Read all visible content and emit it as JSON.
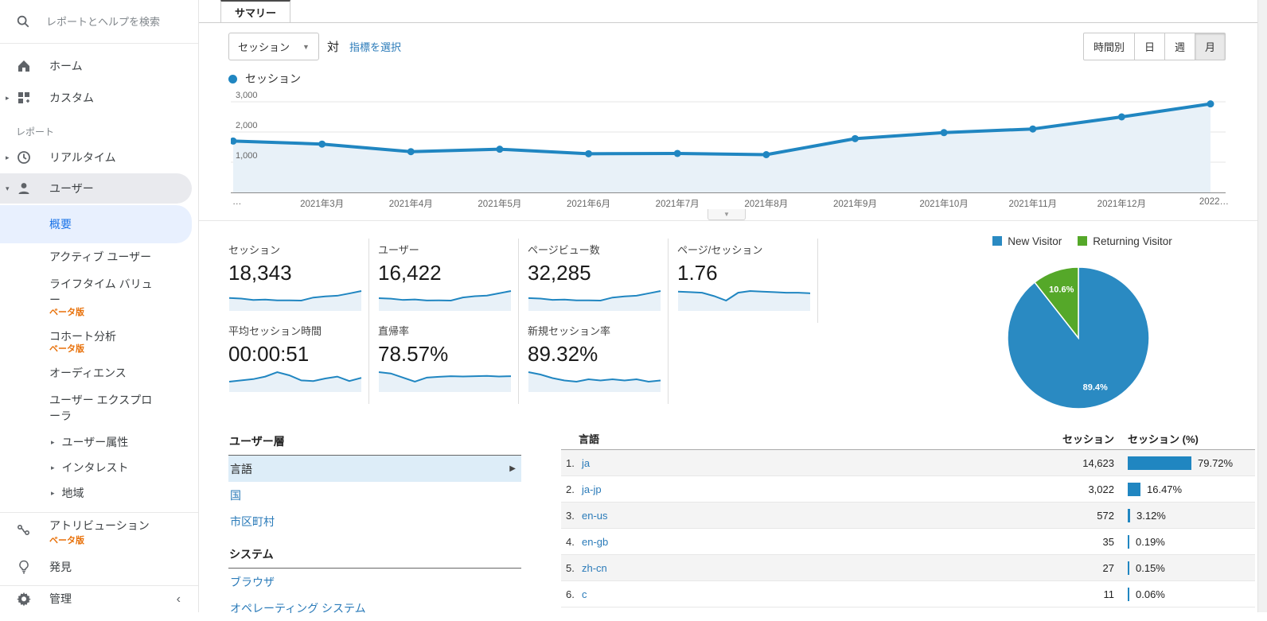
{
  "colors": {
    "accent_blue": "#2086c1",
    "spark_fill": "#e8f1f8",
    "pie_green": "#55a829",
    "beta_orange": "#e8710a",
    "link_blue": "#2b7bb9",
    "selected_nav_blue": "#1a73e8"
  },
  "sidebar": {
    "search_placeholder": "レポートとヘルプを検索",
    "home": "ホーム",
    "custom": "カスタム",
    "reports_label": "レポート",
    "realtime": "リアルタイム",
    "user": "ユーザー",
    "overview": "概要",
    "active_users": "アクティブ ユーザー",
    "lifetime_value": "ライフタイム バリュー",
    "cohort": "コホート分析",
    "audiences": "オーディエンス",
    "user_explorer": "ユーザー エクスプローラ",
    "demographics": "ユーザー属性",
    "interests": "インタレスト",
    "geo": "地域",
    "attribution": "アトリビューション",
    "discover": "発見",
    "admin": "管理",
    "beta_badge": "ベータ版",
    "collapse": "‹"
  },
  "tabs": {
    "active": "サマリー"
  },
  "toolbar": {
    "metric_selector": "セッション",
    "vs": "対",
    "select_metric": "指標を選択",
    "granularity": [
      "時間別",
      "日",
      "週",
      "月"
    ],
    "selected_granularity": "月"
  },
  "chart_legend_label": "セッション",
  "scorecards": [
    {
      "label": "セッション",
      "value": "18,343",
      "spark": [
        1700,
        1600,
        1350,
        1430,
        1280,
        1290,
        1250,
        1780,
        1980,
        2100,
        2500,
        2930
      ]
    },
    {
      "label": "ユーザー",
      "value": "16,422",
      "spark": [
        1500,
        1420,
        1230,
        1300,
        1150,
        1160,
        1130,
        1600,
        1800,
        1900,
        2250,
        2600
      ]
    },
    {
      "label": "ページビュー数",
      "value": "32,285",
      "spark": [
        3000,
        2850,
        2450,
        2550,
        2300,
        2320,
        2250,
        3150,
        3500,
        3700,
        4400,
        5100
      ]
    },
    {
      "label": "ページ/セッション",
      "value": "1.76",
      "spark": [
        1.78,
        1.77,
        1.76,
        1.7,
        1.62,
        1.76,
        1.79,
        1.78,
        1.77,
        1.76,
        1.76,
        1.75
      ]
    },
    {
      "label": "平均セッション時間",
      "value": "00:00:51",
      "spark": [
        48,
        50,
        52,
        56,
        63,
        58,
        50,
        49,
        53,
        56,
        49,
        54
      ]
    },
    {
      "label": "直帰率",
      "value": "78.57%",
      "spark": [
        80,
        79.5,
        78,
        76.5,
        78,
        78.3,
        78.5,
        78.4,
        78.5,
        78.6,
        78.4,
        78.5
      ]
    },
    {
      "label": "新規セッション率",
      "value": "89.32%",
      "spark": [
        90,
        89.8,
        89.5,
        89.3,
        89.2,
        89.4,
        89.3,
        89.4,
        89.3,
        89.4,
        89.2,
        89.3
      ]
    }
  ],
  "chart_data": [
    {
      "id": "sessions-over-time",
      "type": "line",
      "legend": "セッション",
      "x": [
        "…",
        "2021年3月",
        "2021年4月",
        "2021年5月",
        "2021年6月",
        "2021年7月",
        "2021年8月",
        "2021年9月",
        "2021年10月",
        "2021年11月",
        "2021年12月",
        "2022…"
      ],
      "values": [
        1700,
        1600,
        1350,
        1430,
        1280,
        1290,
        1250,
        1780,
        1980,
        2100,
        2500,
        2930
      ],
      "ylim": [
        0,
        3000
      ],
      "yticks": [
        "1,000",
        "2,000",
        "3,000"
      ],
      "ytick_values": [
        1000,
        2000,
        3000
      ],
      "grid": true,
      "color": "#2086c1",
      "fill": "#e8f1f8"
    },
    {
      "id": "visitor-type-pie",
      "type": "pie",
      "labels": [
        "New Visitor",
        "Returning Visitor"
      ],
      "values": [
        89.4,
        10.6
      ],
      "slice_labels": [
        "89.4%",
        "10.6%"
      ],
      "colors": [
        "#2a8ac2",
        "#55a829"
      ],
      "legend_position": "top"
    },
    {
      "id": "language-sessions-table",
      "type": "table",
      "columns": [
        "言語",
        "セッション",
        "セッション (%)"
      ],
      "rows": [
        {
          "lang": "ja",
          "sessions": 14623,
          "pct": 79.72
        },
        {
          "lang": "ja-jp",
          "sessions": 3022,
          "pct": 16.47
        },
        {
          "lang": "en-us",
          "sessions": 572,
          "pct": 3.12
        },
        {
          "lang": "en-gb",
          "sessions": 35,
          "pct": 0.19
        },
        {
          "lang": "zh-cn",
          "sessions": 27,
          "pct": 0.15
        },
        {
          "lang": "c",
          "sessions": 11,
          "pct": 0.06
        }
      ],
      "bar_color": "#2086c1"
    }
  ],
  "panel": {
    "sections": [
      {
        "title": "ユーザー層",
        "items": [
          "言語",
          "国",
          "市区町村"
        ],
        "selected": "言語"
      },
      {
        "title": "システム",
        "items": [
          "ブラウザ",
          "オペレーティング システム"
        ]
      }
    ]
  },
  "table_header": {
    "dimension": "言語",
    "sessions": "セッション",
    "sessions_pct": "セッション (%)"
  }
}
